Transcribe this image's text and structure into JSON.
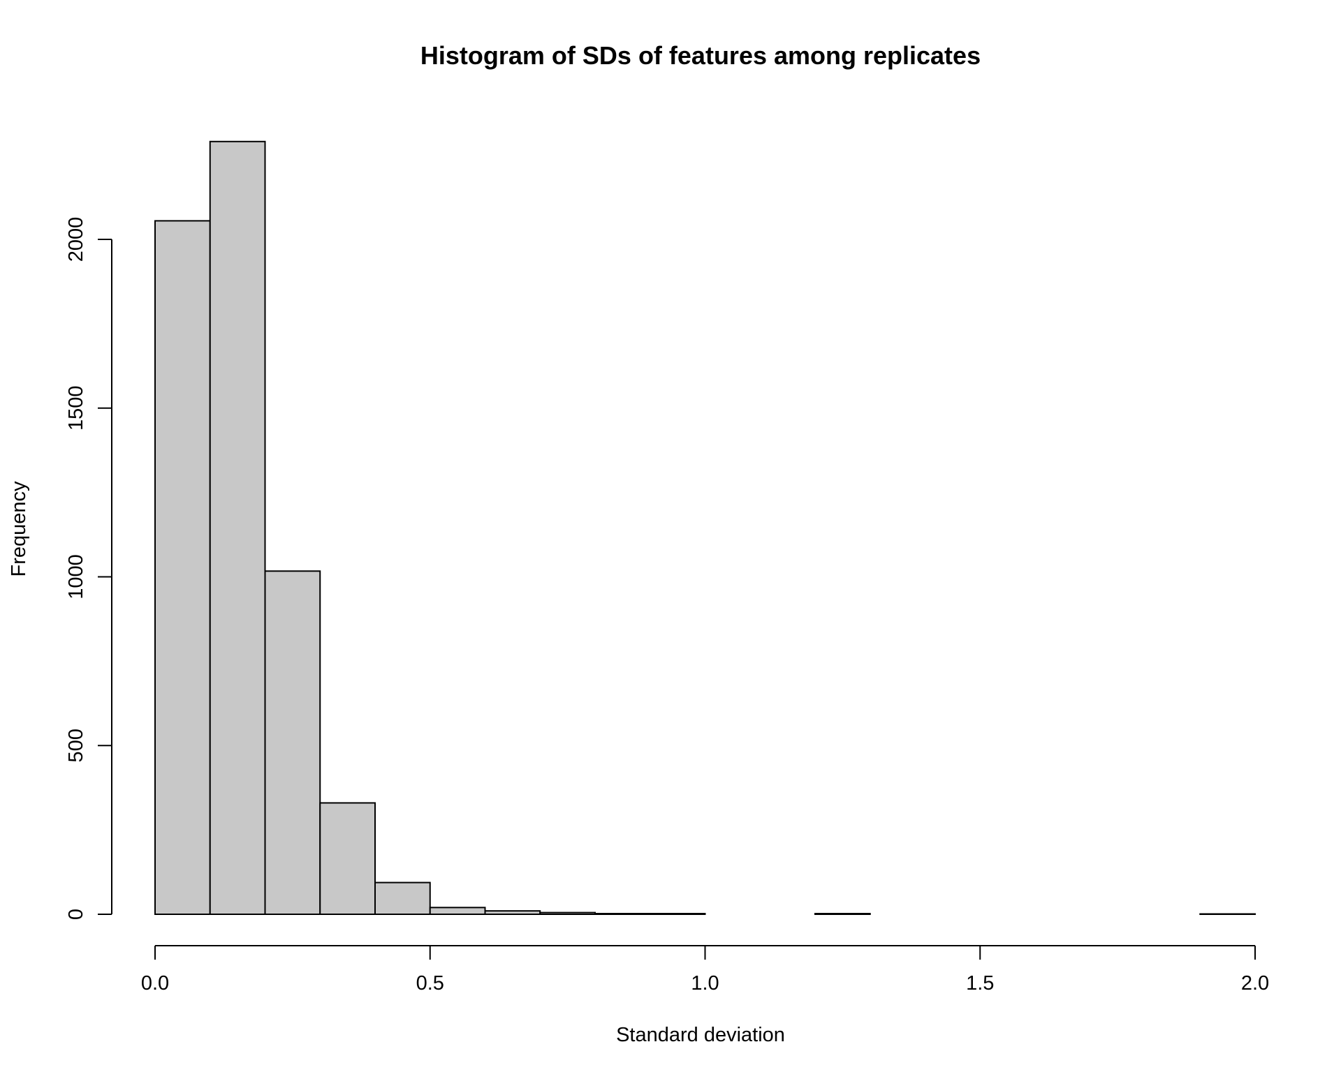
{
  "chart_data": {
    "type": "bar",
    "title": "Histogram of SDs of features among replicates",
    "xlabel": "Standard deviation",
    "ylabel": "Frequency",
    "bins": [
      {
        "start": 0.0,
        "end": 0.1,
        "count": 2055
      },
      {
        "start": 0.1,
        "end": 0.2,
        "count": 2290
      },
      {
        "start": 0.2,
        "end": 0.3,
        "count": 1017
      },
      {
        "start": 0.3,
        "end": 0.4,
        "count": 330
      },
      {
        "start": 0.4,
        "end": 0.5,
        "count": 94
      },
      {
        "start": 0.5,
        "end": 0.6,
        "count": 20
      },
      {
        "start": 0.6,
        "end": 0.7,
        "count": 10
      },
      {
        "start": 0.7,
        "end": 0.8,
        "count": 5
      },
      {
        "start": 0.8,
        "end": 0.9,
        "count": 2
      },
      {
        "start": 0.9,
        "end": 1.0,
        "count": 2
      },
      {
        "start": 1.0,
        "end": 1.1,
        "count": 0
      },
      {
        "start": 1.1,
        "end": 1.2,
        "count": 0
      },
      {
        "start": 1.2,
        "end": 1.3,
        "count": 2
      },
      {
        "start": 1.3,
        "end": 1.4,
        "count": 0
      },
      {
        "start": 1.4,
        "end": 1.5,
        "count": 0
      },
      {
        "start": 1.5,
        "end": 1.6,
        "count": 0
      },
      {
        "start": 1.6,
        "end": 1.7,
        "count": 0
      },
      {
        "start": 1.7,
        "end": 1.8,
        "count": 0
      },
      {
        "start": 1.8,
        "end": 1.9,
        "count": 0
      },
      {
        "start": 1.9,
        "end": 2.0,
        "count": 1
      }
    ],
    "xlim": [
      0,
      2
    ],
    "ylim": [
      0,
      2290
    ],
    "x_ticks": [
      0.0,
      0.5,
      1.0,
      1.5,
      2.0
    ],
    "x_tick_labels": [
      "0.0",
      "0.5",
      "1.0",
      "1.5",
      "2.0"
    ],
    "y_ticks": [
      0,
      500,
      1000,
      1500,
      2000
    ],
    "y_tick_labels": [
      "0",
      "500",
      "1000",
      "1500",
      "2000"
    ],
    "grid": false,
    "colors": {
      "bar_fill": "#c8c8c8",
      "bar_stroke": "#000000"
    }
  }
}
